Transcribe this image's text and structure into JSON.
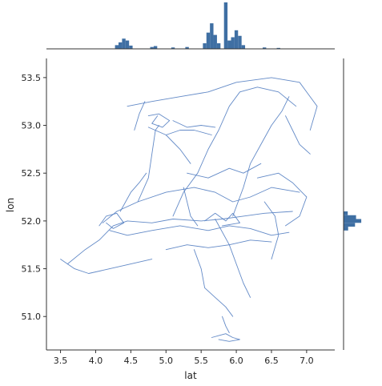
{
  "chart_data": {
    "type": "line",
    "xlabel": "lat",
    "ylabel": "lon",
    "xlim": [
      3.3,
      7.4
    ],
    "ylim": [
      50.65,
      53.7
    ],
    "x_ticks": [
      "3.5",
      "4.0",
      "4.5",
      "5.0",
      "5.5",
      "6.0",
      "6.5",
      "7.0"
    ],
    "y_ticks": [
      "51.0",
      "51.5",
      "52.0",
      "52.5",
      "53.0",
      "53.5"
    ],
    "grid": false,
    "legend": "none",
    "line_color": "#5b84c4",
    "hist_color": "#3f6fa3",
    "marginal_top": {
      "type": "histogram",
      "bins": [
        [
          4.3,
          0.08
        ],
        [
          4.35,
          0.14
        ],
        [
          4.4,
          0.22
        ],
        [
          4.45,
          0.18
        ],
        [
          4.5,
          0.07
        ],
        [
          4.8,
          0.04
        ],
        [
          4.85,
          0.06
        ],
        [
          5.1,
          0.03
        ],
        [
          5.3,
          0.04
        ],
        [
          5.55,
          0.12
        ],
        [
          5.6,
          0.35
        ],
        [
          5.65,
          0.55
        ],
        [
          5.7,
          0.3
        ],
        [
          5.75,
          0.12
        ],
        [
          5.85,
          1.0
        ],
        [
          5.9,
          0.18
        ],
        [
          5.95,
          0.25
        ],
        [
          6.0,
          0.4
        ],
        [
          6.05,
          0.28
        ],
        [
          6.1,
          0.08
        ],
        [
          6.4,
          0.03
        ],
        [
          6.6,
          0.02
        ]
      ]
    },
    "marginal_right": {
      "type": "histogram",
      "bins": [
        [
          51.92,
          0.22
        ],
        [
          51.96,
          0.55
        ],
        [
          52.0,
          0.85
        ],
        [
          52.04,
          0.6
        ],
        [
          52.08,
          0.2
        ]
      ]
    },
    "series": [
      {
        "points": [
          [
            3.6,
            51.55
          ],
          [
            3.85,
            51.7
          ],
          [
            4.05,
            51.8
          ],
          [
            4.25,
            51.95
          ],
          [
            4.45,
            52.0
          ],
          [
            4.8,
            51.98
          ],
          [
            5.1,
            52.02
          ],
          [
            5.5,
            52.0
          ],
          [
            5.8,
            52.02
          ],
          [
            6.1,
            52.05
          ],
          [
            6.4,
            52.08
          ],
          [
            6.8,
            52.1
          ]
        ]
      },
      {
        "points": [
          [
            4.1,
            51.98
          ],
          [
            4.3,
            52.1
          ],
          [
            4.6,
            52.2
          ],
          [
            5.0,
            52.3
          ],
          [
            5.4,
            52.35
          ],
          [
            5.7,
            52.3
          ],
          [
            5.95,
            52.2
          ],
          [
            6.2,
            52.25
          ],
          [
            6.5,
            52.35
          ],
          [
            6.9,
            52.3
          ]
        ]
      },
      {
        "points": [
          [
            4.2,
            51.9
          ],
          [
            4.45,
            51.85
          ],
          [
            4.8,
            51.9
          ],
          [
            5.2,
            51.95
          ],
          [
            5.6,
            51.9
          ],
          [
            5.9,
            51.95
          ],
          [
            6.2,
            51.92
          ],
          [
            6.5,
            51.85
          ],
          [
            6.75,
            51.88
          ]
        ]
      },
      {
        "points": [
          [
            4.6,
            52.2
          ],
          [
            4.75,
            52.45
          ],
          [
            4.8,
            52.7
          ],
          [
            4.85,
            52.95
          ],
          [
            4.9,
            53.0
          ]
        ]
      },
      {
        "points": [
          [
            5.1,
            52.05
          ],
          [
            5.25,
            52.3
          ],
          [
            5.45,
            52.5
          ],
          [
            5.6,
            52.75
          ],
          [
            5.75,
            52.95
          ],
          [
            5.9,
            53.2
          ],
          [
            6.05,
            53.35
          ],
          [
            6.3,
            53.4
          ],
          [
            6.6,
            53.35
          ],
          [
            6.85,
            53.2
          ]
        ]
      },
      {
        "points": [
          [
            5.95,
            52.05
          ],
          [
            6.1,
            52.35
          ],
          [
            6.2,
            52.6
          ],
          [
            6.35,
            52.8
          ],
          [
            6.5,
            53.0
          ],
          [
            6.65,
            53.15
          ],
          [
            6.75,
            53.3
          ]
        ]
      },
      {
        "points": [
          [
            4.45,
            53.2
          ],
          [
            4.8,
            53.25
          ],
          [
            5.2,
            53.3
          ],
          [
            5.6,
            53.35
          ],
          [
            6.0,
            53.45
          ],
          [
            6.5,
            53.5
          ],
          [
            6.9,
            53.45
          ],
          [
            7.15,
            53.2
          ],
          [
            7.05,
            52.95
          ]
        ]
      },
      {
        "points": [
          [
            3.5,
            51.6
          ],
          [
            3.7,
            51.5
          ],
          [
            3.9,
            51.45
          ],
          [
            4.2,
            51.5
          ],
          [
            4.5,
            51.55
          ],
          [
            4.8,
            51.6
          ]
        ]
      },
      {
        "points": [
          [
            5.4,
            51.7
          ],
          [
            5.5,
            51.5
          ],
          [
            5.55,
            51.3
          ],
          [
            5.7,
            51.2
          ],
          [
            5.85,
            51.1
          ],
          [
            5.95,
            51.0
          ]
        ]
      },
      {
        "points": [
          [
            5.7,
            52.02
          ],
          [
            5.9,
            51.75
          ],
          [
            6.0,
            51.55
          ],
          [
            6.1,
            51.35
          ],
          [
            6.2,
            51.2
          ]
        ]
      },
      {
        "points": [
          [
            6.3,
            52.45
          ],
          [
            6.6,
            52.5
          ],
          [
            6.8,
            52.4
          ],
          [
            7.0,
            52.25
          ],
          [
            6.9,
            52.05
          ],
          [
            6.7,
            51.95
          ]
        ]
      },
      {
        "points": [
          [
            5.0,
            51.7
          ],
          [
            5.3,
            51.75
          ],
          [
            5.6,
            51.72
          ],
          [
            5.9,
            51.75
          ],
          [
            6.2,
            51.8
          ],
          [
            6.5,
            51.78
          ]
        ]
      },
      {
        "points": [
          [
            5.3,
            52.5
          ],
          [
            5.6,
            52.45
          ],
          [
            5.9,
            52.55
          ],
          [
            6.1,
            52.5
          ],
          [
            6.35,
            52.6
          ]
        ]
      },
      {
        "points": [
          [
            4.75,
            52.98
          ],
          [
            5.0,
            52.9
          ],
          [
            5.2,
            52.75
          ],
          [
            5.35,
            52.6
          ]
        ]
      },
      {
        "points": [
          [
            5.0,
            52.9
          ],
          [
            5.2,
            52.95
          ],
          [
            5.4,
            52.95
          ],
          [
            5.65,
            52.9
          ]
        ]
      },
      {
        "points": [
          [
            4.35,
            52.1
          ],
          [
            4.5,
            52.3
          ],
          [
            4.62,
            52.4
          ],
          [
            4.72,
            52.5
          ]
        ]
      },
      {
        "points": [
          [
            5.25,
            52.35
          ],
          [
            5.3,
            52.2
          ],
          [
            5.35,
            52.05
          ],
          [
            5.45,
            51.95
          ]
        ]
      },
      {
        "points": [
          [
            6.4,
            52.2
          ],
          [
            6.55,
            52.05
          ],
          [
            6.6,
            51.85
          ],
          [
            6.5,
            51.6
          ]
        ]
      },
      {
        "points": [
          [
            5.65,
            50.78
          ],
          [
            5.75,
            50.8
          ],
          [
            5.85,
            50.82
          ],
          [
            5.95,
            50.78
          ],
          [
            6.05,
            50.76
          ],
          [
            5.9,
            50.74
          ],
          [
            5.75,
            50.76
          ]
        ]
      },
      {
        "points": [
          [
            5.8,
            51.0
          ],
          [
            5.85,
            50.9
          ],
          [
            5.9,
            50.83
          ]
        ]
      },
      {
        "points": [
          [
            4.75,
            53.1
          ],
          [
            4.9,
            53.12
          ],
          [
            5.05,
            53.05
          ],
          [
            4.95,
            52.98
          ],
          [
            4.8,
            53.02
          ],
          [
            4.88,
            53.1
          ]
        ]
      },
      {
        "points": [
          [
            5.1,
            53.05
          ],
          [
            5.3,
            52.98
          ],
          [
            5.5,
            53.0
          ],
          [
            5.7,
            52.98
          ]
        ]
      },
      {
        "points": [
          [
            4.55,
            52.95
          ],
          [
            4.62,
            53.12
          ],
          [
            4.7,
            53.25
          ]
        ]
      },
      {
        "points": [
          [
            6.7,
            53.1
          ],
          [
            6.8,
            52.95
          ],
          [
            6.9,
            52.8
          ],
          [
            7.05,
            52.7
          ]
        ]
      },
      {
        "points": [
          [
            4.05,
            51.95
          ],
          [
            4.15,
            52.05
          ],
          [
            4.3,
            52.08
          ],
          [
            4.4,
            51.98
          ],
          [
            4.25,
            51.92
          ],
          [
            4.15,
            51.98
          ]
        ]
      },
      {
        "points": [
          [
            5.55,
            52.0
          ],
          [
            5.7,
            52.08
          ],
          [
            5.85,
            52.0
          ],
          [
            5.95,
            52.08
          ],
          [
            6.05,
            51.98
          ],
          [
            5.8,
            51.95
          ]
        ]
      }
    ]
  }
}
